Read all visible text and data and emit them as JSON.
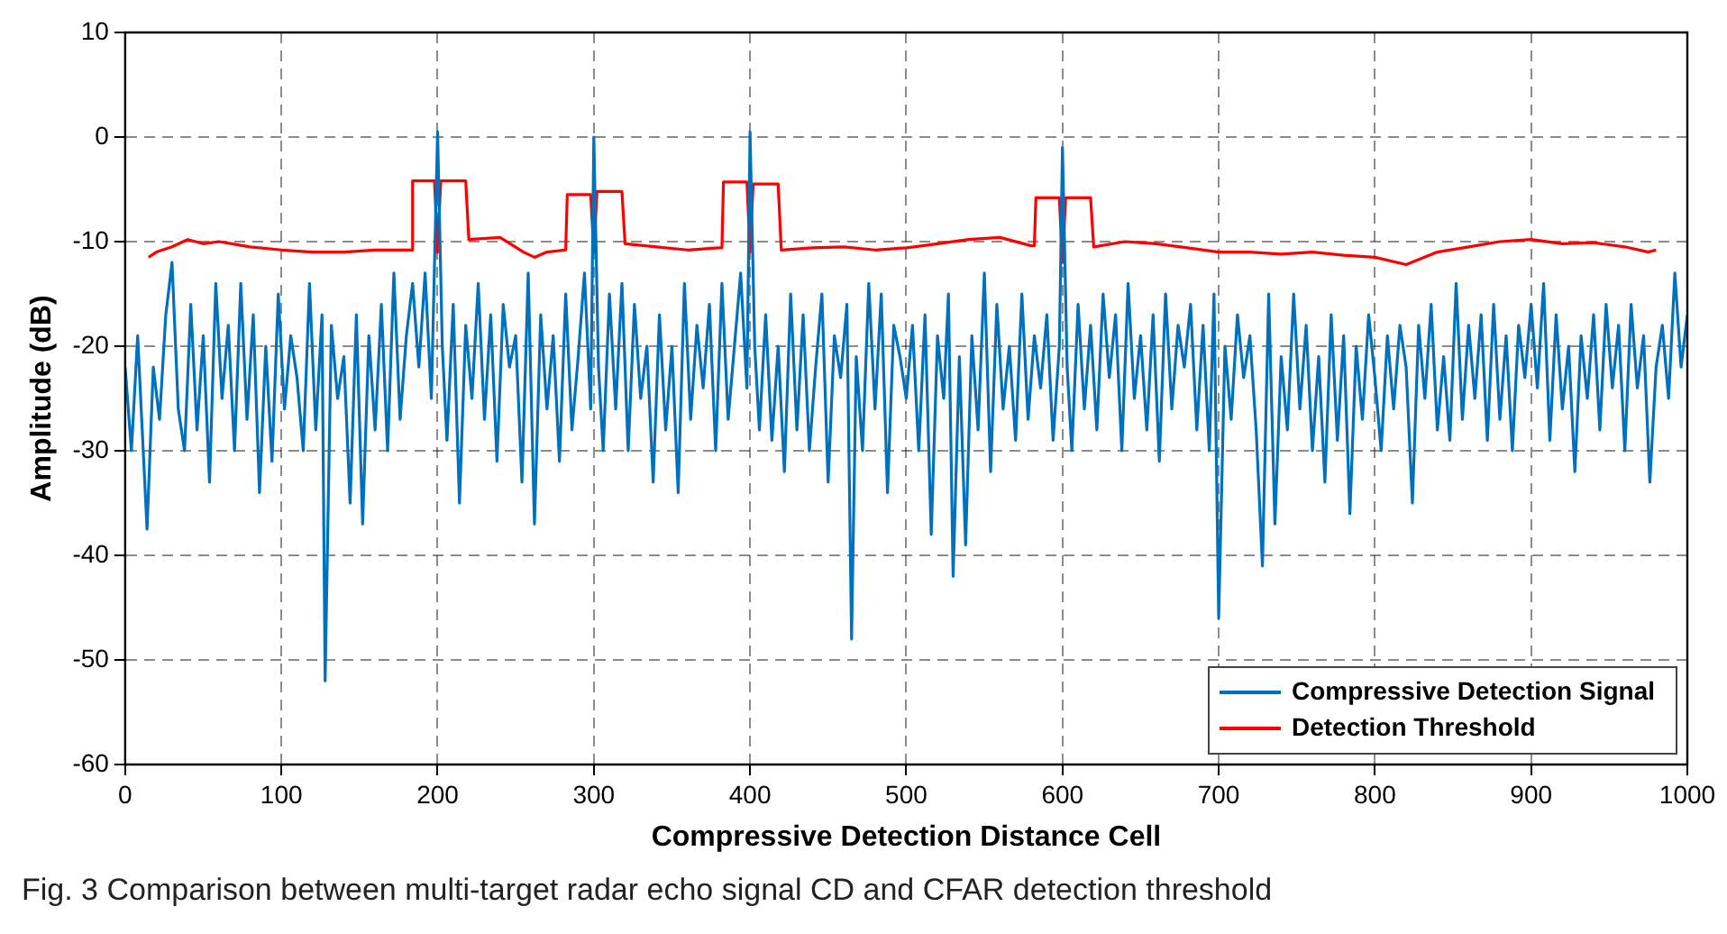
{
  "chart_data": {
    "type": "line",
    "xlabel": "Compressive Detection Distance Cell",
    "ylabel": "Amplitude (dB)",
    "xlim": [
      0,
      1000
    ],
    "xticks": [
      0,
      100,
      200,
      300,
      400,
      500,
      600,
      700,
      800,
      900,
      1000
    ],
    "ylim": [
      -60,
      10
    ],
    "yticks": [
      -60,
      -50,
      -40,
      -30,
      -20,
      -10,
      0,
      10
    ],
    "grid": true,
    "legend": "bottom right",
    "marker": "none",
    "line_style": "solid",
    "annotations": [
      "Fig. 3 Comparison between multi-target radar echo signal CD and CFAR detection threshold"
    ],
    "series": [
      {
        "name": "Compressive Detection Signal",
        "color": "#0072bd",
        "x": [
          0,
          4,
          8,
          14,
          18,
          22,
          26,
          30,
          34,
          38,
          42,
          46,
          50,
          54,
          58,
          62,
          66,
          70,
          74,
          78,
          82,
          86,
          90,
          94,
          98,
          102,
          106,
          110,
          114,
          118,
          122,
          126,
          128,
          132,
          136,
          140,
          144,
          148,
          152,
          156,
          160,
          164,
          168,
          172,
          176,
          180,
          184,
          188,
          192,
          196,
          200,
          203,
          206,
          210,
          214,
          218,
          222,
          226,
          230,
          234,
          238,
          242,
          246,
          250,
          254,
          258,
          262,
          266,
          270,
          274,
          278,
          282,
          286,
          290,
          294,
          298,
          300,
          303,
          306,
          310,
          314,
          318,
          322,
          326,
          330,
          334,
          338,
          342,
          346,
          350,
          354,
          358,
          362,
          366,
          370,
          374,
          378,
          382,
          386,
          390,
          394,
          398,
          400,
          403,
          406,
          410,
          414,
          418,
          422,
          426,
          430,
          434,
          438,
          442,
          446,
          450,
          454,
          458,
          462,
          465,
          468,
          472,
          476,
          480,
          484,
          488,
          492,
          496,
          500,
          504,
          508,
          512,
          516,
          520,
          524,
          527,
          530,
          534,
          538,
          542,
          546,
          550,
          554,
          558,
          562,
          566,
          570,
          574,
          578,
          582,
          586,
          590,
          594,
          598,
          600,
          603,
          606,
          610,
          614,
          618,
          622,
          626,
          630,
          634,
          638,
          642,
          646,
          650,
          654,
          658,
          662,
          666,
          670,
          674,
          678,
          682,
          686,
          690,
          694,
          697,
          700,
          704,
          708,
          712,
          716,
          720,
          724,
          728,
          732,
          736,
          740,
          744,
          748,
          752,
          756,
          760,
          764,
          768,
          772,
          776,
          780,
          784,
          788,
          792,
          796,
          800,
          804,
          808,
          812,
          816,
          820,
          824,
          828,
          832,
          836,
          840,
          844,
          848,
          852,
          856,
          860,
          864,
          868,
          872,
          876,
          880,
          884,
          888,
          892,
          896,
          900,
          904,
          908,
          912,
          916,
          920,
          924,
          928,
          932,
          936,
          940,
          944,
          948,
          952,
          956,
          960,
          964,
          968,
          972,
          976,
          980,
          984,
          988,
          992,
          996,
          1000
        ],
        "values": [
          -22,
          -30,
          -19,
          -37.5,
          -22,
          -27,
          -17,
          -12,
          -26,
          -30,
          -16,
          -28,
          -19,
          -33,
          -14,
          -25,
          -18,
          -30,
          -14,
          -27,
          -17,
          -34,
          -20,
          -31,
          -15,
          -26,
          -19,
          -23,
          -30,
          -14,
          -28,
          -17,
          -52,
          -18,
          -25,
          -21,
          -35,
          -17,
          -37,
          -19,
          -28,
          -16,
          -30,
          -13,
          -27,
          -19,
          -14,
          -22,
          -13,
          -25,
          0.5,
          -20,
          -29,
          -16,
          -35,
          -18,
          -25,
          -14,
          -27,
          -17,
          -31,
          -16,
          -22,
          -19,
          -33,
          -13,
          -37,
          -17,
          -26,
          -19,
          -31,
          -15,
          -28,
          -21,
          -13,
          -26,
          0,
          -22,
          -30,
          -15,
          -26,
          -14,
          -30,
          -16,
          -25,
          -20,
          -33,
          -17,
          -28,
          -20,
          -34,
          -14,
          -27,
          -18,
          -24,
          -16,
          -30,
          -14,
          -27,
          -20,
          -13,
          -24,
          0.5,
          -20,
          -28,
          -17,
          -29,
          -20,
          -32,
          -15,
          -28,
          -17,
          -30,
          -22,
          -15,
          -33,
          -19,
          -23,
          -16,
          -48,
          -21,
          -30,
          -14,
          -26,
          -15,
          -34,
          -18,
          -21,
          -25,
          -18,
          -30,
          -17,
          -38,
          -19,
          -25,
          -15,
          -42,
          -21,
          -39,
          -19,
          -28,
          -13,
          -32,
          -16,
          -26,
          -20,
          -29,
          -15,
          -27,
          -19,
          -24,
          -17,
          -29,
          -20,
          -1,
          -22,
          -30,
          -16,
          -26,
          -18,
          -28,
          -15,
          -23,
          -17,
          -30,
          -14,
          -25,
          -19,
          -28,
          -17,
          -31,
          -15,
          -26,
          -18,
          -22,
          -16,
          -28,
          -18,
          -30,
          -15,
          -46,
          -20,
          -27,
          -17,
          -23,
          -19,
          -28,
          -41,
          -15,
          -37,
          -21,
          -28,
          -15,
          -26,
          -18,
          -30,
          -21,
          -33,
          -17,
          -29,
          -19,
          -36,
          -20,
          -27,
          -17,
          -23,
          -30,
          -19,
          -26,
          -18,
          -22,
          -35,
          -18,
          -25,
          -16,
          -28,
          -21,
          -29,
          -14,
          -27,
          -18,
          -25,
          -17,
          -29,
          -16,
          -27,
          -19,
          -30,
          -18,
          -23,
          -16,
          -24,
          -14,
          -29,
          -17,
          -26,
          -20,
          -32,
          -19,
          -25,
          -17,
          -28,
          -16,
          -24,
          -18,
          -30,
          -16,
          -24,
          -19,
          -33,
          -22,
          -18,
          -25,
          -13,
          -22,
          -17
        ]
      },
      {
        "name": "Detection Threshold",
        "color": "#ff0000",
        "x": [
          15,
          20,
          30,
          40,
          50,
          60,
          80,
          100,
          120,
          140,
          160,
          183,
          184,
          198,
          200,
          202,
          218,
          220,
          240,
          255,
          262,
          270,
          282,
          283,
          298,
          300,
          302,
          318,
          320,
          340,
          360,
          380,
          382,
          383,
          398,
          400,
          402,
          418,
          420,
          440,
          460,
          480,
          500,
          520,
          540,
          560,
          580,
          582,
          583,
          598,
          600,
          602,
          618,
          620,
          640,
          660,
          680,
          700,
          720,
          740,
          760,
          780,
          800,
          820,
          840,
          860,
          880,
          900,
          920,
          940,
          960,
          975,
          980
        ],
        "values": [
          -11.5,
          -11,
          -10.5,
          -9.8,
          -10.2,
          -10,
          -10.5,
          -10.8,
          -11,
          -11,
          -10.8,
          -10.8,
          -4.2,
          -4.2,
          -11,
          -4.2,
          -4.2,
          -9.8,
          -9.6,
          -11,
          -11.5,
          -11,
          -10.8,
          -5.5,
          -5.5,
          -11,
          -5.2,
          -5.2,
          -10.2,
          -10.5,
          -10.8,
          -10.6,
          -10.6,
          -4.3,
          -4.3,
          -11,
          -4.5,
          -4.5,
          -10.8,
          -10.6,
          -10.5,
          -10.8,
          -10.6,
          -10.2,
          -9.8,
          -9.6,
          -10.4,
          -10.4,
          -5.8,
          -5.8,
          -12,
          -5.8,
          -5.8,
          -10.5,
          -10,
          -10.2,
          -10.6,
          -11,
          -11,
          -11.2,
          -11,
          -11.3,
          -11.5,
          -12.2,
          -11,
          -10.5,
          -10,
          -9.8,
          -10.2,
          -10.1,
          -10.5,
          -11,
          -10.8
        ]
      }
    ]
  }
}
